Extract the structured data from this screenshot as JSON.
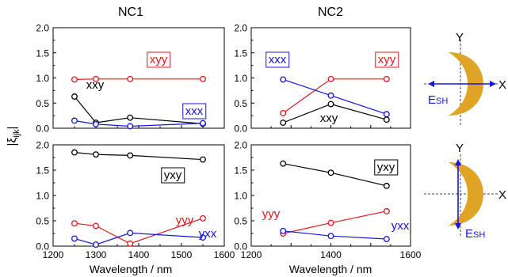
{
  "figure": {
    "ylabel": "|ξijk|",
    "ylabel_main": "|ξ",
    "ylabel_sub": "ijk",
    "ylabel_end": "|",
    "xlabel": "Wavelength / nm"
  },
  "colors": {
    "black": "#000000",
    "red": "#e8171b",
    "blue": "#1515e0",
    "gold": "#dfa326"
  },
  "chart_data": [
    {
      "type": "line",
      "panel": "NC1 top",
      "title": "NC1",
      "xlabel": "",
      "ylabel": "|ξijk|",
      "xlim": [
        1200,
        1600
      ],
      "ylim": [
        0,
        2.0
      ],
      "yticks": [
        "0.0",
        "0.5",
        "1.0",
        "1.5",
        "2.0"
      ],
      "xticks": [],
      "series": [
        {
          "name": "xyy",
          "color": "red",
          "x": [
            1250,
            1300,
            1380,
            1550
          ],
          "y": [
            0.97,
            0.98,
            0.98,
            0.98
          ]
        },
        {
          "name": "xxy",
          "color": "black",
          "x": [
            1250,
            1300,
            1380,
            1550
          ],
          "y": [
            0.63,
            0.11,
            0.21,
            0.09
          ]
        },
        {
          "name": "xxx",
          "color": "blue",
          "x": [
            1250,
            1300,
            1380,
            1550
          ],
          "y": [
            0.15,
            0.08,
            0.04,
            0.1
          ]
        }
      ],
      "labels": [
        {
          "text": "xyy",
          "color": "red",
          "boxed": true
        },
        {
          "text": "xxy",
          "color": "black",
          "boxed": false
        },
        {
          "text": "xxx",
          "color": "blue",
          "boxed": true
        }
      ]
    },
    {
      "type": "line",
      "panel": "NC2 top",
      "title": "NC2",
      "xlabel": "",
      "ylabel": "",
      "xlim": [
        1200,
        1600
      ],
      "ylim": [
        0,
        2.0
      ],
      "yticks": [
        "0.0",
        "0.5",
        "1.0",
        "1.5",
        "2.0"
      ],
      "xticks": [],
      "series": [
        {
          "name": "xyy",
          "color": "red",
          "x": [
            1280,
            1400,
            1540
          ],
          "y": [
            0.3,
            0.98,
            0.98
          ]
        },
        {
          "name": "xxx",
          "color": "blue",
          "x": [
            1280,
            1400,
            1540
          ],
          "y": [
            0.97,
            0.65,
            0.28
          ]
        },
        {
          "name": "xxy",
          "color": "black",
          "x": [
            1280,
            1400,
            1540
          ],
          "y": [
            0.11,
            0.48,
            0.17
          ]
        }
      ],
      "labels": [
        {
          "text": "xxx",
          "color": "blue",
          "boxed": true
        },
        {
          "text": "xyy",
          "color": "red",
          "boxed": true
        },
        {
          "text": "xxy",
          "color": "black",
          "boxed": false
        }
      ]
    },
    {
      "type": "line",
      "panel": "NC1 bottom",
      "title": "",
      "xlabel": "Wavelength / nm",
      "ylabel": "",
      "xlim": [
        1200,
        1600
      ],
      "ylim": [
        0,
        2.0
      ],
      "yticks": [
        "0.0",
        "0.5",
        "1.0",
        "1.5",
        "2.0"
      ],
      "xticks": [
        "1200",
        "1300",
        "1400",
        "1500",
        "1600"
      ],
      "series": [
        {
          "name": "yxy",
          "color": "black",
          "x": [
            1250,
            1300,
            1380,
            1550
          ],
          "y": [
            1.85,
            1.81,
            1.79,
            1.71
          ]
        },
        {
          "name": "yyy",
          "color": "red",
          "x": [
            1250,
            1300,
            1380,
            1550
          ],
          "y": [
            0.45,
            0.4,
            0.05,
            0.55
          ]
        },
        {
          "name": "yxx",
          "color": "blue",
          "x": [
            1250,
            1300,
            1380,
            1550
          ],
          "y": [
            0.15,
            0.03,
            0.26,
            0.17
          ]
        }
      ],
      "labels": [
        {
          "text": "yxy",
          "color": "black",
          "boxed": true
        },
        {
          "text": "yyy",
          "color": "red",
          "boxed": false
        },
        {
          "text": "yxx",
          "color": "blue",
          "boxed": false
        }
      ]
    },
    {
      "type": "line",
      "panel": "NC2 bottom",
      "title": "",
      "xlabel": "Wavelength / nm",
      "ylabel": "",
      "xlim": [
        1200,
        1600
      ],
      "ylim": [
        0,
        2.0
      ],
      "yticks": [
        "0.0",
        "0.5",
        "1.0",
        "1.5",
        "2.0"
      ],
      "xticks": [
        "1200",
        "1400",
        "1600"
      ],
      "series": [
        {
          "name": "yxy",
          "color": "black",
          "x": [
            1280,
            1400,
            1540
          ],
          "y": [
            1.63,
            1.45,
            1.19
          ]
        },
        {
          "name": "yyy",
          "color": "red",
          "x": [
            1280,
            1400,
            1540
          ],
          "y": [
            0.25,
            0.46,
            0.69
          ]
        },
        {
          "name": "yxx",
          "color": "blue",
          "x": [
            1280,
            1400,
            1540
          ],
          "y": [
            0.3,
            0.2,
            0.14
          ]
        }
      ],
      "labels": [
        {
          "text": "yxy",
          "color": "black",
          "boxed": true
        },
        {
          "text": "yyy",
          "color": "red",
          "boxed": false
        },
        {
          "text": "yxx",
          "color": "blue",
          "boxed": false
        }
      ]
    }
  ],
  "insets": [
    {
      "name": "top",
      "axis_y": "Y",
      "axis_x": "X",
      "field_main": "E",
      "field_sub": "SH",
      "arrow": "horizontal"
    },
    {
      "name": "bottom",
      "axis_y": "Y",
      "axis_x": "X",
      "field_main": "E",
      "field_sub": "SH",
      "arrow": "vertical"
    }
  ]
}
